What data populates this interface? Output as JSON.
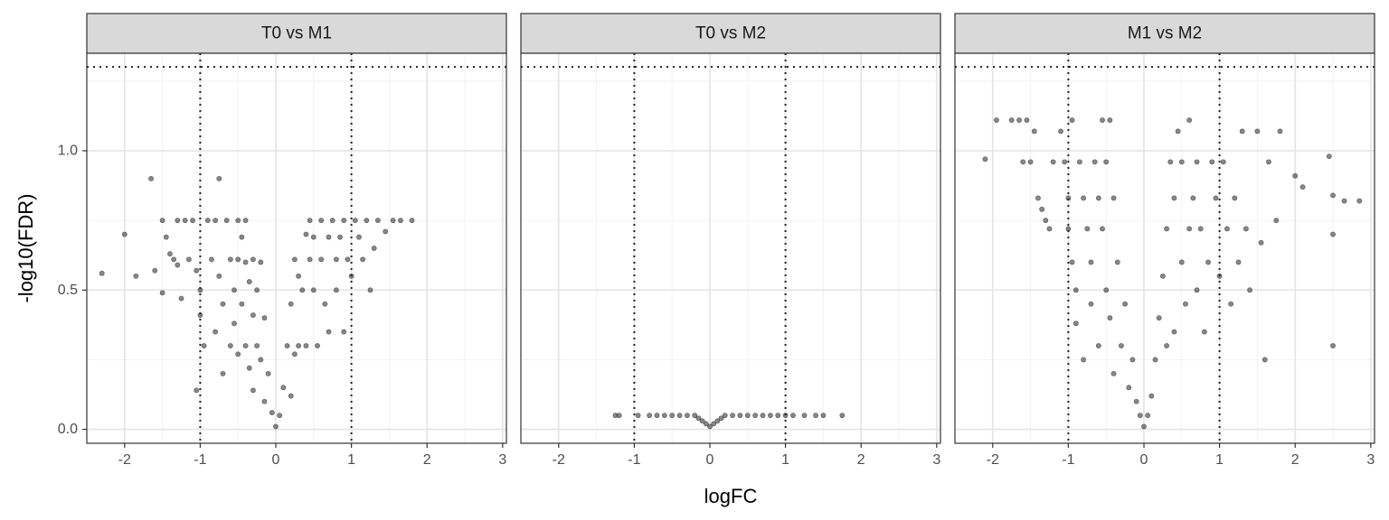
{
  "chart_data": {
    "type": "scatter",
    "facet_variable": "comparison",
    "xlabel": "logFC",
    "ylabel": "-log10(FDR)",
    "xlim": [
      -2.5,
      3.05
    ],
    "ylim": [
      -0.05,
      1.35
    ],
    "x_ticks": [
      -2,
      -1,
      0,
      1,
      2,
      3
    ],
    "x_tick_labels": [
      "-2",
      "-1",
      "0",
      "1",
      "2",
      "3"
    ],
    "y_ticks": [
      0.0,
      0.5,
      1.0
    ],
    "y_tick_labels": [
      "0.0",
      "0.5",
      "1.0"
    ],
    "reference_lines": {
      "vertical": [
        -1,
        1
      ],
      "horizontal": [
        1.301
      ],
      "style": "dotted"
    },
    "grid": true,
    "theme": "bw",
    "point_color": "#262626",
    "point_alpha": 0.55,
    "panels": [
      {
        "title": "T0 vs M1",
        "points": [
          [
            -2.3,
            0.56
          ],
          [
            -2.0,
            0.7
          ],
          [
            -1.85,
            0.55
          ],
          [
            -1.65,
            0.9
          ],
          [
            -1.6,
            0.57
          ],
          [
            -1.5,
            0.75
          ],
          [
            -1.5,
            0.49
          ],
          [
            -1.45,
            0.69
          ],
          [
            -1.4,
            0.63
          ],
          [
            -1.35,
            0.61
          ],
          [
            -1.3,
            0.75
          ],
          [
            -1.3,
            0.59
          ],
          [
            -1.25,
            0.47
          ],
          [
            -1.2,
            0.75
          ],
          [
            -1.15,
            0.61
          ],
          [
            -1.1,
            0.75
          ],
          [
            -1.05,
            0.57
          ],
          [
            -1.05,
            0.14
          ],
          [
            -1.0,
            0.5
          ],
          [
            -1.0,
            0.41
          ],
          [
            -0.95,
            0.3
          ],
          [
            -0.9,
            0.75
          ],
          [
            -0.85,
            0.61
          ],
          [
            -0.8,
            0.75
          ],
          [
            -0.8,
            0.35
          ],
          [
            -0.75,
            0.9
          ],
          [
            -0.75,
            0.55
          ],
          [
            -0.7,
            0.45
          ],
          [
            -0.7,
            0.2
          ],
          [
            -0.65,
            0.75
          ],
          [
            -0.6,
            0.61
          ],
          [
            -0.6,
            0.3
          ],
          [
            -0.55,
            0.5
          ],
          [
            -0.55,
            0.38
          ],
          [
            -0.5,
            0.75
          ],
          [
            -0.5,
            0.61
          ],
          [
            -0.5,
            0.27
          ],
          [
            -0.45,
            0.69
          ],
          [
            -0.45,
            0.45
          ],
          [
            -0.4,
            0.75
          ],
          [
            -0.4,
            0.6
          ],
          [
            -0.4,
            0.3
          ],
          [
            -0.35,
            0.53
          ],
          [
            -0.35,
            0.22
          ],
          [
            -0.3,
            0.61
          ],
          [
            -0.3,
            0.41
          ],
          [
            -0.3,
            0.14
          ],
          [
            -0.25,
            0.5
          ],
          [
            -0.25,
            0.3
          ],
          [
            -0.2,
            0.6
          ],
          [
            -0.2,
            0.25
          ],
          [
            -0.15,
            0.4
          ],
          [
            -0.15,
            0.1
          ],
          [
            -0.1,
            0.2
          ],
          [
            -0.05,
            0.06
          ],
          [
            0.0,
            0.01
          ],
          [
            0.05,
            0.05
          ],
          [
            0.1,
            0.15
          ],
          [
            0.15,
            0.3
          ],
          [
            0.2,
            0.45
          ],
          [
            0.2,
            0.12
          ],
          [
            0.25,
            0.61
          ],
          [
            0.25,
            0.27
          ],
          [
            0.3,
            0.55
          ],
          [
            0.3,
            0.3
          ],
          [
            0.35,
            0.5
          ],
          [
            0.4,
            0.7
          ],
          [
            0.4,
            0.3
          ],
          [
            0.45,
            0.75
          ],
          [
            0.45,
            0.61
          ],
          [
            0.5,
            0.69
          ],
          [
            0.5,
            0.5
          ],
          [
            0.55,
            0.3
          ],
          [
            0.6,
            0.75
          ],
          [
            0.6,
            0.61
          ],
          [
            0.65,
            0.45
          ],
          [
            0.7,
            0.69
          ],
          [
            0.7,
            0.35
          ],
          [
            0.75,
            0.75
          ],
          [
            0.8,
            0.61
          ],
          [
            0.8,
            0.5
          ],
          [
            0.85,
            0.69
          ],
          [
            0.9,
            0.75
          ],
          [
            0.9,
            0.35
          ],
          [
            0.95,
            0.61
          ],
          [
            1.0,
            0.55
          ],
          [
            1.05,
            0.75
          ],
          [
            1.1,
            0.69
          ],
          [
            1.15,
            0.61
          ],
          [
            1.2,
            0.75
          ],
          [
            1.25,
            0.5
          ],
          [
            1.3,
            0.65
          ],
          [
            1.35,
            0.75
          ],
          [
            1.45,
            0.71
          ],
          [
            1.55,
            0.75
          ],
          [
            1.65,
            0.75
          ],
          [
            1.8,
            0.75
          ]
        ]
      },
      {
        "title": "T0 vs M2",
        "points": [
          [
            -1.25,
            0.05
          ],
          [
            -1.2,
            0.05
          ],
          [
            -0.95,
            0.05
          ],
          [
            -0.8,
            0.05
          ],
          [
            -0.7,
            0.05
          ],
          [
            -0.6,
            0.05
          ],
          [
            -0.5,
            0.05
          ],
          [
            -0.4,
            0.05
          ],
          [
            -0.3,
            0.05
          ],
          [
            -0.2,
            0.05
          ],
          [
            -0.15,
            0.04
          ],
          [
            -0.1,
            0.03
          ],
          [
            -0.05,
            0.02
          ],
          [
            0.0,
            0.01
          ],
          [
            0.05,
            0.02
          ],
          [
            0.1,
            0.03
          ],
          [
            0.15,
            0.04
          ],
          [
            0.2,
            0.05
          ],
          [
            0.3,
            0.05
          ],
          [
            0.4,
            0.05
          ],
          [
            0.5,
            0.05
          ],
          [
            0.6,
            0.05
          ],
          [
            0.7,
            0.05
          ],
          [
            0.8,
            0.05
          ],
          [
            0.9,
            0.05
          ],
          [
            1.0,
            0.05
          ],
          [
            1.1,
            0.05
          ],
          [
            1.25,
            0.05
          ],
          [
            1.4,
            0.05
          ],
          [
            1.5,
            0.05
          ],
          [
            1.75,
            0.05
          ]
        ]
      },
      {
        "title": "M1 vs M2",
        "points": [
          [
            -2.1,
            0.97
          ],
          [
            -1.95,
            1.11
          ],
          [
            -1.75,
            1.11
          ],
          [
            -1.65,
            1.11
          ],
          [
            -1.6,
            0.96
          ],
          [
            -1.55,
            1.11
          ],
          [
            -1.5,
            0.96
          ],
          [
            -1.45,
            1.07
          ],
          [
            -1.4,
            0.83
          ],
          [
            -1.35,
            0.79
          ],
          [
            -1.3,
            0.75
          ],
          [
            -1.25,
            0.72
          ],
          [
            -1.2,
            0.96
          ],
          [
            -1.1,
            1.07
          ],
          [
            -1.05,
            0.96
          ],
          [
            -1.0,
            0.83
          ],
          [
            -1.0,
            0.72
          ],
          [
            -0.95,
            1.11
          ],
          [
            -0.95,
            0.6
          ],
          [
            -0.9,
            0.5
          ],
          [
            -0.9,
            0.38
          ],
          [
            -0.85,
            0.96
          ],
          [
            -0.8,
            0.83
          ],
          [
            -0.8,
            0.25
          ],
          [
            -0.75,
            0.72
          ],
          [
            -0.7,
            0.6
          ],
          [
            -0.7,
            0.45
          ],
          [
            -0.65,
            0.96
          ],
          [
            -0.6,
            0.83
          ],
          [
            -0.6,
            0.3
          ],
          [
            -0.55,
            1.11
          ],
          [
            -0.55,
            0.72
          ],
          [
            -0.5,
            0.96
          ],
          [
            -0.5,
            0.5
          ],
          [
            -0.45,
            1.11
          ],
          [
            -0.45,
            0.4
          ],
          [
            -0.4,
            0.83
          ],
          [
            -0.4,
            0.2
          ],
          [
            -0.35,
            0.6
          ],
          [
            -0.3,
            0.3
          ],
          [
            -0.25,
            0.45
          ],
          [
            -0.2,
            0.15
          ],
          [
            -0.15,
            0.25
          ],
          [
            -0.1,
            0.1
          ],
          [
            -0.05,
            0.05
          ],
          [
            0.0,
            0.01
          ],
          [
            0.05,
            0.05
          ],
          [
            0.1,
            0.12
          ],
          [
            0.15,
            0.25
          ],
          [
            0.2,
            0.4
          ],
          [
            0.25,
            0.55
          ],
          [
            0.3,
            0.72
          ],
          [
            0.3,
            0.3
          ],
          [
            0.35,
            0.96
          ],
          [
            0.4,
            0.83
          ],
          [
            0.4,
            0.35
          ],
          [
            0.45,
            1.07
          ],
          [
            0.5,
            0.96
          ],
          [
            0.5,
            0.6
          ],
          [
            0.55,
            0.45
          ],
          [
            0.6,
            0.72
          ],
          [
            0.6,
            1.11
          ],
          [
            0.65,
            0.83
          ],
          [
            0.7,
            0.96
          ],
          [
            0.7,
            0.5
          ],
          [
            0.75,
            0.72
          ],
          [
            0.8,
            0.35
          ],
          [
            0.85,
            0.6
          ],
          [
            0.9,
            0.96
          ],
          [
            0.95,
            0.83
          ],
          [
            1.0,
            0.55
          ],
          [
            1.05,
            0.96
          ],
          [
            1.1,
            0.72
          ],
          [
            1.15,
            0.45
          ],
          [
            1.2,
            0.83
          ],
          [
            1.25,
            0.6
          ],
          [
            1.3,
            1.07
          ],
          [
            1.35,
            0.72
          ],
          [
            1.4,
            0.5
          ],
          [
            1.5,
            1.07
          ],
          [
            1.55,
            0.67
          ],
          [
            1.6,
            0.25
          ],
          [
            1.65,
            0.96
          ],
          [
            1.75,
            0.75
          ],
          [
            1.8,
            1.07
          ],
          [
            2.0,
            0.91
          ],
          [
            2.1,
            0.87
          ],
          [
            2.45,
            0.98
          ],
          [
            2.5,
            0.84
          ],
          [
            2.5,
            0.7
          ],
          [
            2.5,
            0.3
          ],
          [
            2.65,
            0.82
          ],
          [
            2.85,
            0.82
          ]
        ]
      }
    ]
  }
}
